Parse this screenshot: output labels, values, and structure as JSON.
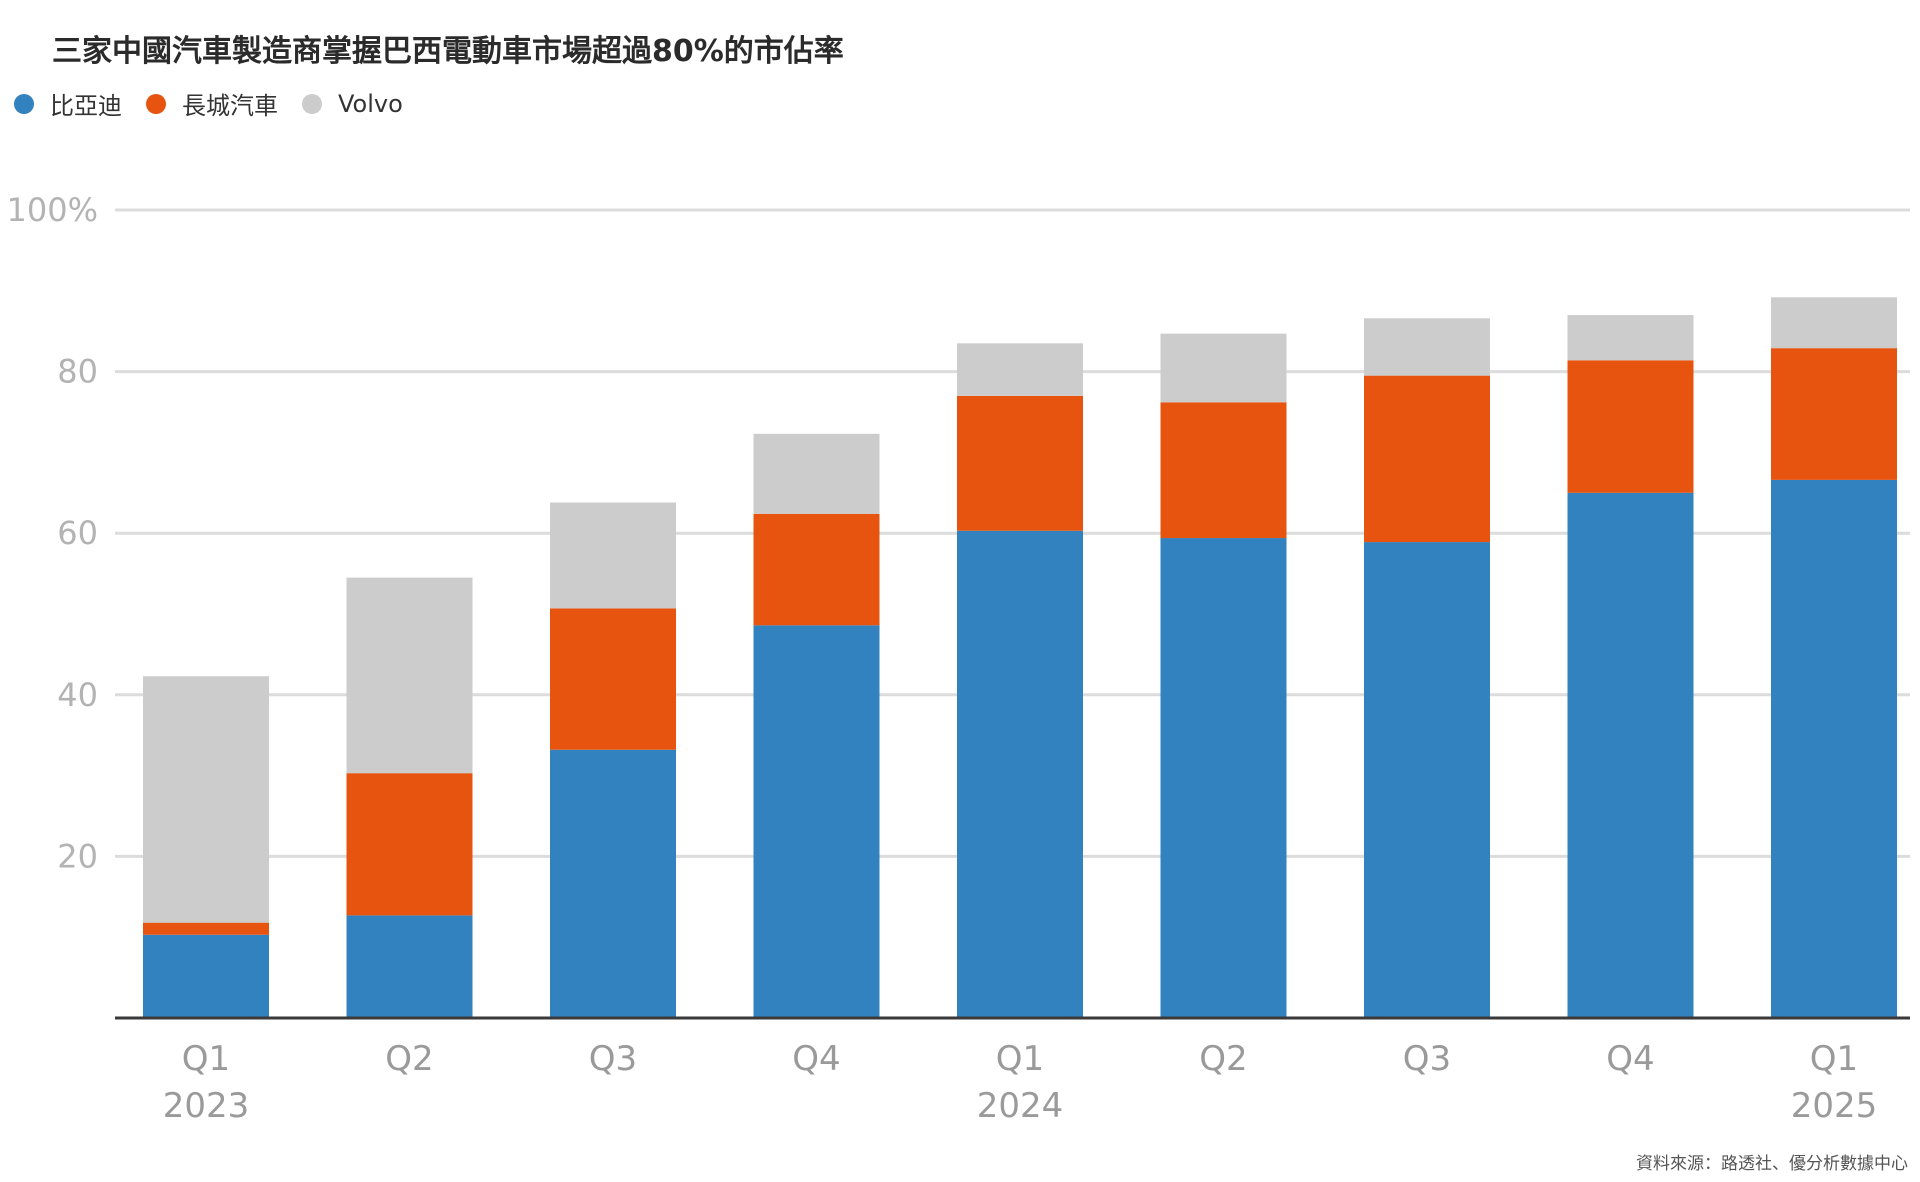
{
  "title": "三家中國汽車製造商掌握巴西電動車市場超過80%的市佔率",
  "legend": [
    {
      "name": "比亞迪",
      "color": "#3282bf"
    },
    {
      "name": "長城汽車",
      "color": "#e65410"
    },
    {
      "name": "Volvo",
      "color": "#cccccc"
    }
  ],
  "source": "資料來源：路透社、優分析數據中心",
  "chart_data": {
    "type": "bar",
    "stacked": true,
    "categories": [
      "Q1 2023",
      "Q2 2023",
      "Q3 2023",
      "Q4 2023",
      "Q1 2024",
      "Q2 2024",
      "Q3 2024",
      "Q4 2024",
      "Q1 2025"
    ],
    "x_tick_labels": [
      {
        "quarter": "Q1",
        "year": "2023"
      },
      {
        "quarter": "Q2",
        "year": ""
      },
      {
        "quarter": "Q3",
        "year": ""
      },
      {
        "quarter": "Q4",
        "year": ""
      },
      {
        "quarter": "Q1",
        "year": "2024"
      },
      {
        "quarter": "Q2",
        "year": ""
      },
      {
        "quarter": "Q3",
        "year": ""
      },
      {
        "quarter": "Q4",
        "year": ""
      },
      {
        "quarter": "Q1",
        "year": "2025"
      }
    ],
    "series": [
      {
        "name": "比亞迪",
        "color": "#3282bf",
        "values": [
          10.3,
          12.7,
          33.2,
          48.6,
          60.3,
          59.4,
          58.9,
          65.0,
          66.6
        ]
      },
      {
        "name": "長城汽車",
        "color": "#e65410",
        "values": [
          1.5,
          17.6,
          17.5,
          13.8,
          16.7,
          16.8,
          20.6,
          16.4,
          16.3
        ]
      },
      {
        "name": "Volvo",
        "color": "#cccccc",
        "values": [
          30.5,
          24.2,
          13.1,
          9.9,
          6.5,
          8.5,
          7.1,
          5.6,
          6.3
        ]
      }
    ],
    "ylim": [
      0,
      100
    ],
    "yticks": [
      {
        "value": 20,
        "label": "20"
      },
      {
        "value": 40,
        "label": "40"
      },
      {
        "value": 60,
        "label": "60"
      },
      {
        "value": 80,
        "label": "80"
      },
      {
        "value": 100,
        "label": "100%"
      }
    ],
    "grid": true
  }
}
